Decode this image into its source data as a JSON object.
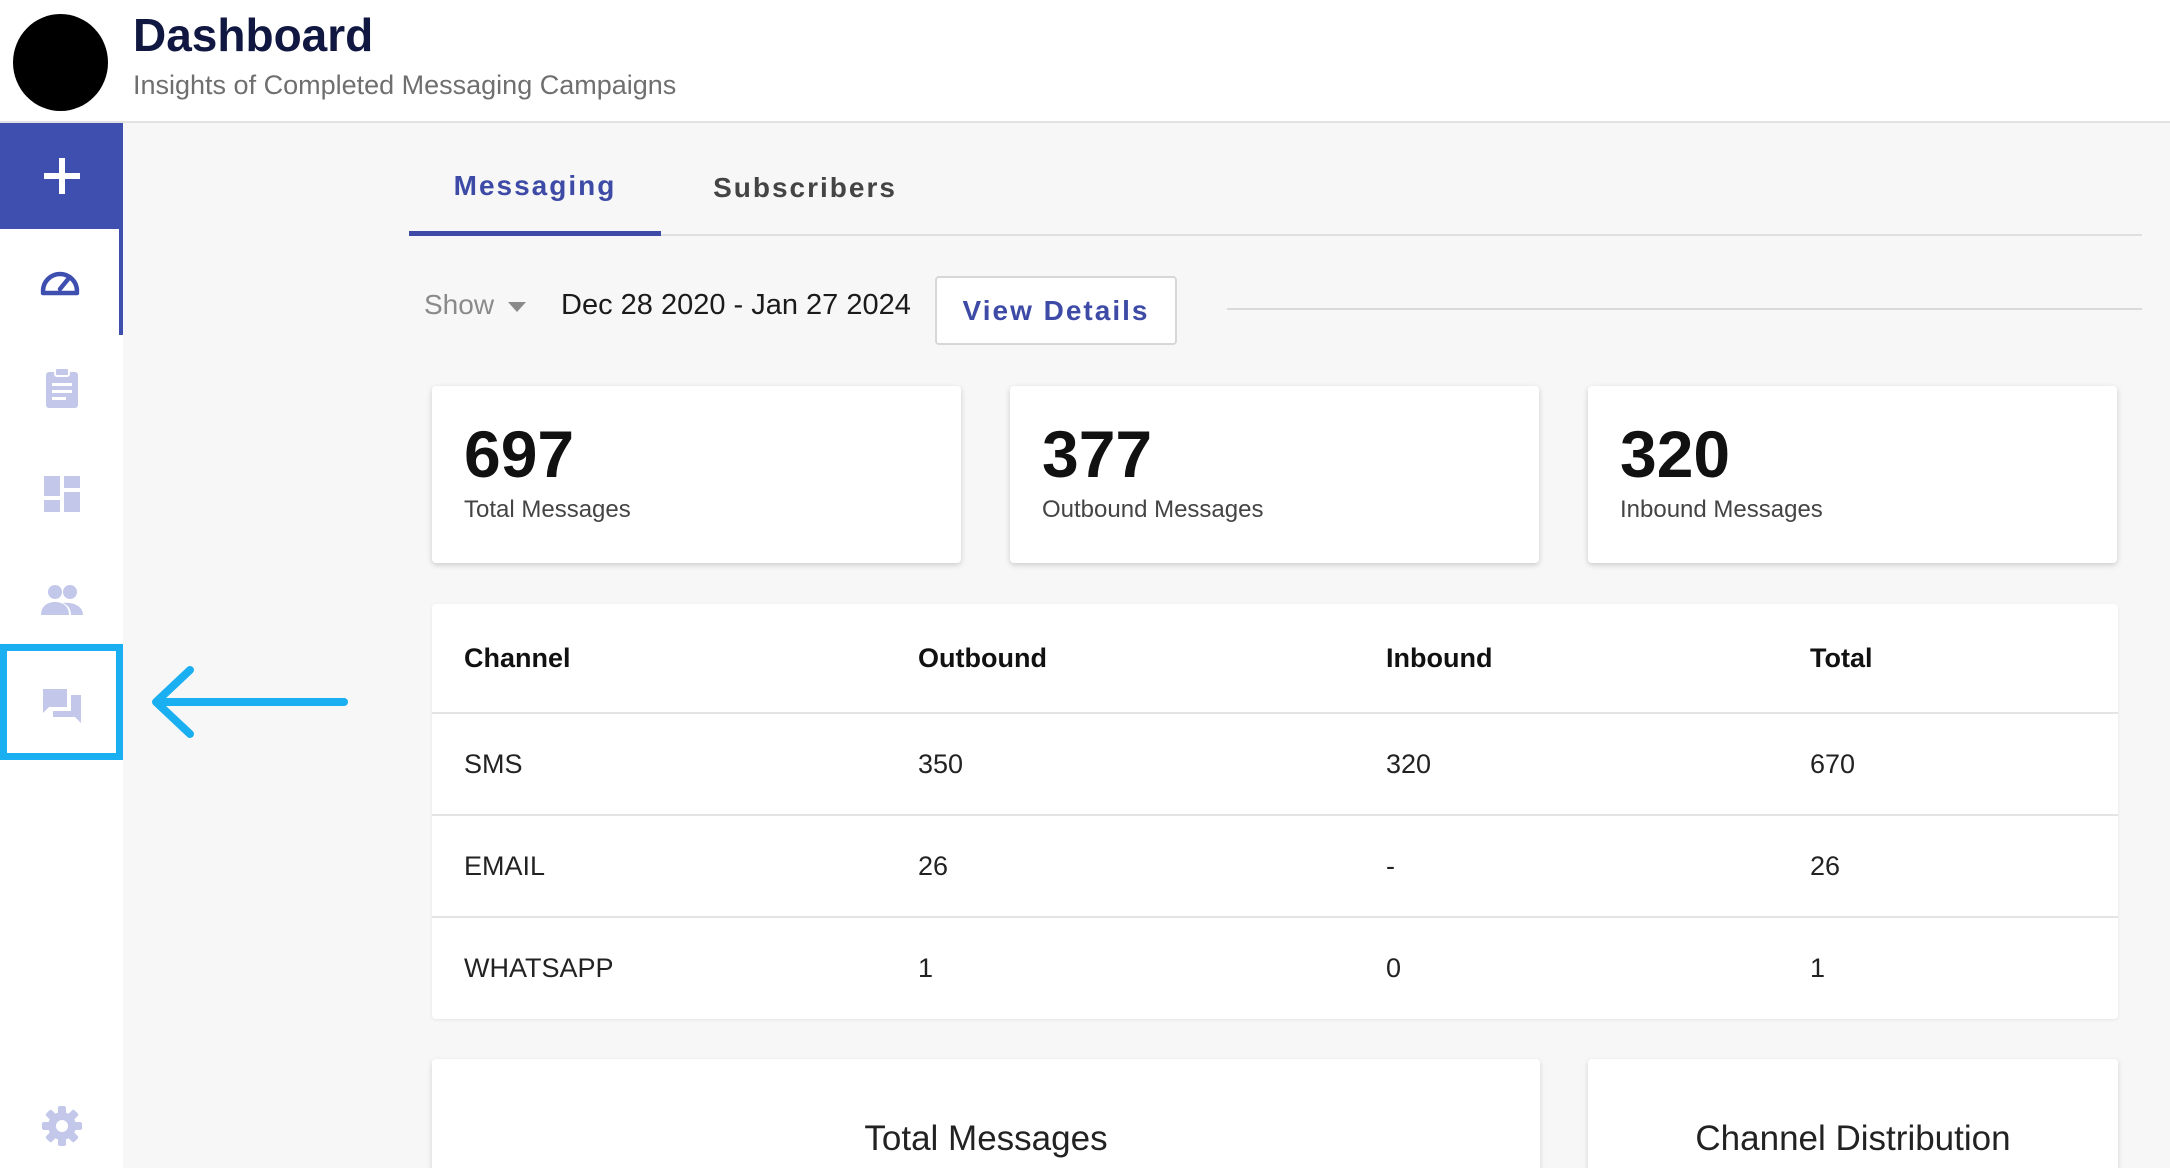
{
  "header": {
    "title": "Dashboard",
    "subtitle": "Insights of Completed Messaging Campaigns"
  },
  "sidebar": {
    "items": [
      {
        "icon": "plus-icon"
      },
      {
        "icon": "speedometer-icon"
      },
      {
        "icon": "clipboard-icon"
      },
      {
        "icon": "dashboard-grid-icon"
      },
      {
        "icon": "people-icon"
      },
      {
        "icon": "chat-icon"
      },
      {
        "icon": "gear-icon"
      }
    ]
  },
  "colors": {
    "accent": "#3f4fb0",
    "highlight": "#1aaff0",
    "icon_muted": "#c3c8ea"
  },
  "tabs": [
    {
      "label": "Messaging",
      "active": true
    },
    {
      "label": "Subscribers",
      "active": false
    }
  ],
  "filter": {
    "show_label": "Show",
    "date_range": "Dec 28 2020 - Jan 27 2024",
    "view_details_label": "View Details"
  },
  "stats": [
    {
      "value": "697",
      "label": "Total Messages"
    },
    {
      "value": "377",
      "label": "Outbound Messages"
    },
    {
      "value": "320",
      "label": "Inbound Messages"
    }
  ],
  "table": {
    "headers": [
      "Channel",
      "Outbound",
      "Inbound",
      "Total"
    ],
    "rows": [
      [
        "SMS",
        "350",
        "320",
        "670"
      ],
      [
        "EMAIL",
        "26",
        "-",
        "26"
      ],
      [
        "WHATSAPP",
        "1",
        "0",
        "1"
      ]
    ]
  },
  "charts": {
    "total_messages_title": "Total Messages",
    "channel_distribution_title": "Channel Distribution"
  }
}
